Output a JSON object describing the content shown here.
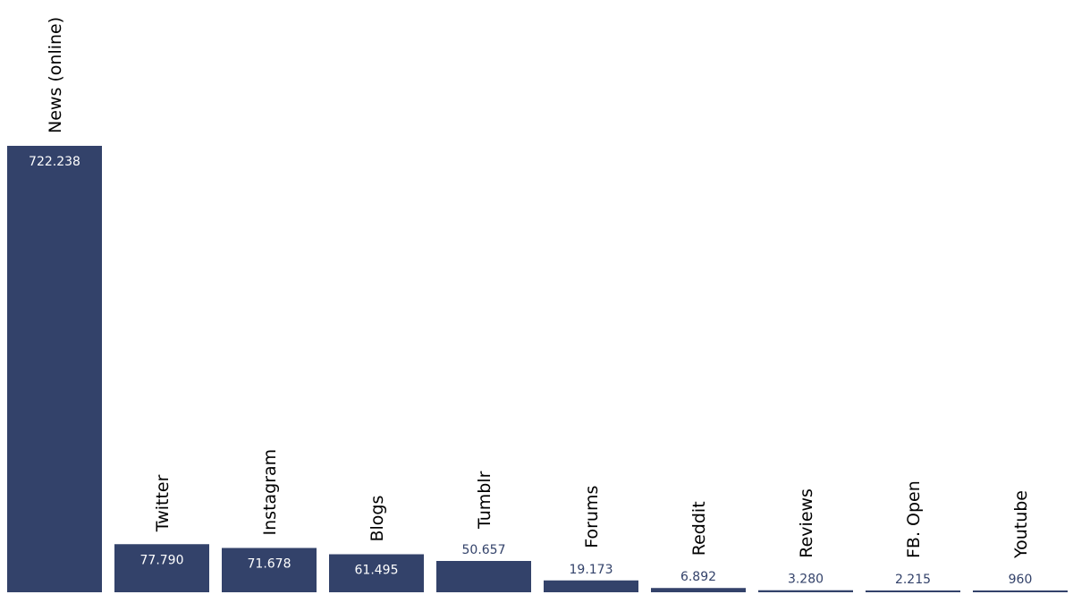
{
  "chart_data": {
    "type": "bar",
    "title": "",
    "xlabel": "",
    "ylabel": "",
    "categories": [
      "News (online)",
      "Twitter",
      "Instagram",
      "Blogs",
      "Tumblr",
      "Forums",
      "Reddit",
      "Reviews",
      "FB. Open",
      "Youtube"
    ],
    "values": [
      722238,
      77790,
      71678,
      61495,
      50657,
      19173,
      6892,
      3280,
      2215,
      960
    ],
    "value_labels": [
      "722.238",
      "77.790",
      "71.678",
      "61.495",
      "50.657",
      "19.173",
      "6.892",
      "3.280",
      "2.215",
      "960"
    ],
    "ylim": [
      0,
      722238
    ],
    "grid": false,
    "legend": "none",
    "colors": {
      "bar": "#33426a",
      "label_inside": "#ffffff",
      "label_outside": "#33426a",
      "category_text": "#000000"
    }
  }
}
